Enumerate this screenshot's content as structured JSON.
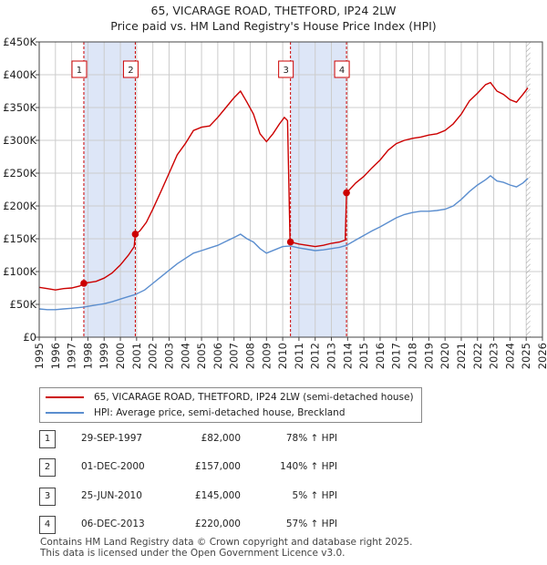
{
  "title": {
    "line1": "65, VICARAGE ROAD, THETFORD, IP24 2LW",
    "line2": "Price paid vs. HM Land Registry's House Price Index (HPI)"
  },
  "colors": {
    "property": "#cc0000",
    "hpi": "#5b8ecf",
    "shade": "#dde6f7",
    "grid": "#cccccc",
    "marker_border": "#cc0000"
  },
  "chart_data": {
    "type": "line",
    "title": "65, VICARAGE ROAD, THETFORD, IP24 2LW",
    "ylim": [
      0,
      450000
    ],
    "xlim": [
      1995.0,
      2026.0
    ],
    "y_ticks": [
      {
        "value": 0,
        "label": "£0"
      },
      {
        "value": 50000,
        "label": "£50K"
      },
      {
        "value": 100000,
        "label": "£100K"
      },
      {
        "value": 150000,
        "label": "£150K"
      },
      {
        "value": 200000,
        "label": "£200K"
      },
      {
        "value": 250000,
        "label": "£250K"
      },
      {
        "value": 300000,
        "label": "£300K"
      },
      {
        "value": 350000,
        "label": "£350K"
      },
      {
        "value": 400000,
        "label": "£400K"
      },
      {
        "value": 450000,
        "label": "£450K"
      }
    ],
    "x_ticks": [
      "1995",
      "1996",
      "1997",
      "1998",
      "1999",
      "2000",
      "2001",
      "2002",
      "2003",
      "2004",
      "2005",
      "2006",
      "2007",
      "2008",
      "2009",
      "2010",
      "2011",
      "2012",
      "2013",
      "2014",
      "2015",
      "2016",
      "2017",
      "2018",
      "2019",
      "2020",
      "2021",
      "2022",
      "2023",
      "2024",
      "2025",
      "2026"
    ],
    "shaded_periods": [
      [
        1997.75,
        2000.92
      ],
      [
        2010.48,
        2013.93
      ]
    ],
    "hatch_from": 2025.0,
    "series": [
      {
        "name": "65, VICARAGE ROAD, THETFORD, IP24 2LW (semi-detached house)",
        "points": [
          [
            1995.0,
            76000
          ],
          [
            1995.5,
            74000
          ],
          [
            1996.0,
            72000
          ],
          [
            1996.5,
            74000
          ],
          [
            1997.0,
            75000
          ],
          [
            1997.5,
            78000
          ],
          [
            1997.75,
            82000
          ],
          [
            1998.0,
            83000
          ],
          [
            1998.5,
            85000
          ],
          [
            1999.0,
            90000
          ],
          [
            1999.5,
            98000
          ],
          [
            2000.0,
            110000
          ],
          [
            2000.5,
            125000
          ],
          [
            2000.85,
            138000
          ],
          [
            2000.92,
            157000
          ],
          [
            2001.2,
            162000
          ],
          [
            2001.6,
            175000
          ],
          [
            2002.0,
            195000
          ],
          [
            2002.5,
            222000
          ],
          [
            2003.0,
            250000
          ],
          [
            2003.5,
            278000
          ],
          [
            2004.0,
            295000
          ],
          [
            2004.5,
            315000
          ],
          [
            2005.0,
            320000
          ],
          [
            2005.5,
            322000
          ],
          [
            2006.0,
            335000
          ],
          [
            2006.5,
            350000
          ],
          [
            2007.0,
            365000
          ],
          [
            2007.4,
            375000
          ],
          [
            2007.8,
            358000
          ],
          [
            2008.2,
            340000
          ],
          [
            2008.6,
            310000
          ],
          [
            2009.0,
            298000
          ],
          [
            2009.4,
            310000
          ],
          [
            2009.8,
            325000
          ],
          [
            2010.1,
            335000
          ],
          [
            2010.3,
            330000
          ],
          [
            2010.45,
            150000
          ],
          [
            2010.48,
            145000
          ],
          [
            2011.0,
            142000
          ],
          [
            2011.5,
            140000
          ],
          [
            2012.0,
            138000
          ],
          [
            2012.5,
            140000
          ],
          [
            2013.0,
            143000
          ],
          [
            2013.5,
            145000
          ],
          [
            2013.85,
            148000
          ],
          [
            2013.93,
            220000
          ],
          [
            2014.5,
            235000
          ],
          [
            2015.0,
            245000
          ],
          [
            2015.5,
            258000
          ],
          [
            2016.0,
            270000
          ],
          [
            2016.5,
            285000
          ],
          [
            2017.0,
            295000
          ],
          [
            2017.5,
            300000
          ],
          [
            2018.0,
            303000
          ],
          [
            2018.5,
            305000
          ],
          [
            2019.0,
            308000
          ],
          [
            2019.5,
            310000
          ],
          [
            2020.0,
            315000
          ],
          [
            2020.5,
            325000
          ],
          [
            2021.0,
            340000
          ],
          [
            2021.5,
            360000
          ],
          [
            2022.0,
            372000
          ],
          [
            2022.5,
            385000
          ],
          [
            2022.8,
            388000
          ],
          [
            2023.2,
            375000
          ],
          [
            2023.6,
            370000
          ],
          [
            2024.0,
            362000
          ],
          [
            2024.4,
            358000
          ],
          [
            2024.8,
            370000
          ],
          [
            2025.1,
            380000
          ]
        ]
      },
      {
        "name": "HPI: Average price, semi-detached house, Breckland",
        "points": [
          [
            1995.0,
            43000
          ],
          [
            1995.5,
            42000
          ],
          [
            1996.0,
            42000
          ],
          [
            1996.5,
            43000
          ],
          [
            1997.0,
            44000
          ],
          [
            1997.75,
            46000
          ],
          [
            1998.0,
            47000
          ],
          [
            1998.5,
            49000
          ],
          [
            1999.0,
            51000
          ],
          [
            1999.5,
            54000
          ],
          [
            2000.0,
            58000
          ],
          [
            2000.5,
            62000
          ],
          [
            2000.92,
            65000
          ],
          [
            2001.5,
            72000
          ],
          [
            2002.0,
            82000
          ],
          [
            2002.5,
            92000
          ],
          [
            2003.0,
            102000
          ],
          [
            2003.5,
            112000
          ],
          [
            2004.0,
            120000
          ],
          [
            2004.5,
            128000
          ],
          [
            2005.0,
            132000
          ],
          [
            2005.5,
            136000
          ],
          [
            2006.0,
            140000
          ],
          [
            2006.5,
            146000
          ],
          [
            2007.0,
            152000
          ],
          [
            2007.4,
            157000
          ],
          [
            2007.8,
            150000
          ],
          [
            2008.2,
            145000
          ],
          [
            2008.6,
            135000
          ],
          [
            2009.0,
            128000
          ],
          [
            2009.5,
            133000
          ],
          [
            2010.0,
            138000
          ],
          [
            2010.48,
            139000
          ],
          [
            2011.0,
            136000
          ],
          [
            2011.5,
            134000
          ],
          [
            2012.0,
            132000
          ],
          [
            2012.5,
            133000
          ],
          [
            2013.0,
            135000
          ],
          [
            2013.5,
            137000
          ],
          [
            2013.93,
            140000
          ],
          [
            2014.5,
            148000
          ],
          [
            2015.0,
            155000
          ],
          [
            2015.5,
            162000
          ],
          [
            2016.0,
            168000
          ],
          [
            2016.5,
            175000
          ],
          [
            2017.0,
            182000
          ],
          [
            2017.5,
            187000
          ],
          [
            2018.0,
            190000
          ],
          [
            2018.5,
            192000
          ],
          [
            2019.0,
            192000
          ],
          [
            2019.5,
            193000
          ],
          [
            2020.0,
            195000
          ],
          [
            2020.5,
            200000
          ],
          [
            2021.0,
            210000
          ],
          [
            2021.5,
            222000
          ],
          [
            2022.0,
            232000
          ],
          [
            2022.5,
            240000
          ],
          [
            2022.8,
            246000
          ],
          [
            2023.2,
            238000
          ],
          [
            2023.6,
            236000
          ],
          [
            2024.0,
            232000
          ],
          [
            2024.4,
            229000
          ],
          [
            2024.8,
            235000
          ],
          [
            2025.1,
            242000
          ]
        ]
      }
    ],
    "transactions": [
      {
        "id": "1",
        "date": "29-SEP-1997",
        "x": 1997.75,
        "price": 82000,
        "price_label": "£82,000",
        "hpi": "78% ↑ HPI"
      },
      {
        "id": "2",
        "date": "01-DEC-2000",
        "x": 2000.92,
        "price": 157000,
        "price_label": "£157,000",
        "hpi": "140% ↑ HPI"
      },
      {
        "id": "3",
        "date": "25-JUN-2010",
        "x": 2010.48,
        "price": 145000,
        "price_label": "£145,000",
        "hpi": "5% ↑ HPI"
      },
      {
        "id": "4",
        "date": "06-DEC-2013",
        "x": 2013.93,
        "price": 220000,
        "price_label": "£220,000",
        "hpi": "57% ↑ HPI"
      }
    ]
  },
  "legend": {
    "property_label": "65, VICARAGE ROAD, THETFORD, IP24 2LW (semi-detached house)",
    "hpi_label": "HPI: Average price, semi-detached house, Breckland"
  },
  "footer": {
    "line1": "Contains HM Land Registry data © Crown copyright and database right 2025.",
    "line2": "This data is licensed under the Open Government Licence v3.0."
  }
}
